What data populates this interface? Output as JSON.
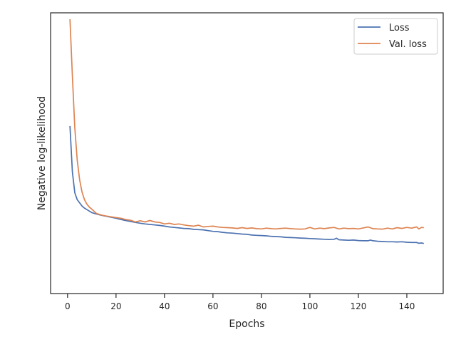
{
  "chart_data": {
    "type": "line",
    "title": "",
    "xlabel": "Epochs",
    "ylabel": "Negative log-likelihood",
    "xlim": [
      -7,
      155
    ],
    "ylim": [
      0,
      1
    ],
    "y_ticks_labeled": false,
    "x_ticks": [
      0,
      20,
      40,
      60,
      80,
      100,
      120,
      140
    ],
    "grid": false,
    "legend_position": "top-right",
    "series": [
      {
        "name": "Loss",
        "color": "#4c72b0",
        "x": [
          1,
          2,
          3,
          4,
          5,
          6,
          7,
          8,
          9,
          10,
          12,
          14,
          16,
          18,
          20,
          22,
          24,
          26,
          28,
          30,
          32,
          34,
          36,
          38,
          40,
          42,
          44,
          46,
          48,
          50,
          52,
          54,
          56,
          58,
          60,
          62,
          64,
          66,
          68,
          70,
          72,
          74,
          76,
          78,
          80,
          82,
          84,
          86,
          88,
          90,
          92,
          94,
          96,
          98,
          100,
          102,
          104,
          106,
          108,
          110,
          111,
          112,
          114,
          116,
          118,
          120,
          122,
          124,
          125,
          126,
          128,
          130,
          132,
          134,
          136,
          138,
          140,
          142,
          144,
          145,
          146,
          147
        ],
        "values": [
          0.568,
          0.382,
          0.298,
          0.27,
          0.257,
          0.244,
          0.236,
          0.23,
          0.224,
          0.218,
          0.212,
          0.207,
          0.203,
          0.199,
          0.195,
          0.19,
          0.186,
          0.182,
          0.178,
          0.175,
          0.172,
          0.17,
          0.168,
          0.166,
          0.163,
          0.16,
          0.158,
          0.156,
          0.154,
          0.153,
          0.15,
          0.149,
          0.148,
          0.145,
          0.142,
          0.141,
          0.138,
          0.136,
          0.135,
          0.133,
          0.131,
          0.13,
          0.127,
          0.126,
          0.125,
          0.124,
          0.122,
          0.121,
          0.12,
          0.118,
          0.117,
          0.116,
          0.115,
          0.114,
          0.113,
          0.112,
          0.111,
          0.11,
          0.109,
          0.11,
          0.114,
          0.108,
          0.107,
          0.106,
          0.107,
          0.105,
          0.104,
          0.104,
          0.107,
          0.104,
          0.102,
          0.101,
          0.1,
          0.1,
          0.099,
          0.1,
          0.098,
          0.097,
          0.097,
          0.094,
          0.095,
          0.093
        ]
      },
      {
        "name": "Val. loss",
        "color": "#dd8452",
        "x": [
          1,
          2,
          3,
          4,
          5,
          6,
          7,
          8,
          9,
          10,
          12,
          14,
          16,
          18,
          20,
          22,
          24,
          26,
          28,
          30,
          32,
          34,
          36,
          38,
          40,
          42,
          44,
          46,
          48,
          50,
          52,
          54,
          56,
          58,
          60,
          62,
          64,
          66,
          68,
          70,
          72,
          74,
          76,
          78,
          80,
          82,
          84,
          86,
          88,
          90,
          92,
          94,
          96,
          98,
          100,
          102,
          104,
          106,
          108,
          110,
          112,
          114,
          116,
          118,
          120,
          122,
          124,
          126,
          128,
          130,
          132,
          134,
          136,
          138,
          140,
          142,
          144,
          145,
          146,
          147
        ],
        "values": [
          1.0,
          0.77,
          0.56,
          0.43,
          0.35,
          0.3,
          0.27,
          0.252,
          0.24,
          0.232,
          0.214,
          0.208,
          0.204,
          0.201,
          0.198,
          0.195,
          0.19,
          0.187,
          0.18,
          0.185,
          0.18,
          0.186,
          0.18,
          0.178,
          0.172,
          0.175,
          0.17,
          0.172,
          0.168,
          0.165,
          0.163,
          0.167,
          0.16,
          0.162,
          0.163,
          0.16,
          0.158,
          0.157,
          0.156,
          0.154,
          0.157,
          0.154,
          0.156,
          0.153,
          0.152,
          0.155,
          0.153,
          0.152,
          0.154,
          0.155,
          0.153,
          0.152,
          0.151,
          0.152,
          0.158,
          0.152,
          0.155,
          0.153,
          0.156,
          0.158,
          0.152,
          0.155,
          0.153,
          0.154,
          0.152,
          0.156,
          0.16,
          0.153,
          0.152,
          0.151,
          0.155,
          0.152,
          0.157,
          0.154,
          0.158,
          0.155,
          0.16,
          0.152,
          0.158,
          0.157
        ]
      }
    ]
  }
}
